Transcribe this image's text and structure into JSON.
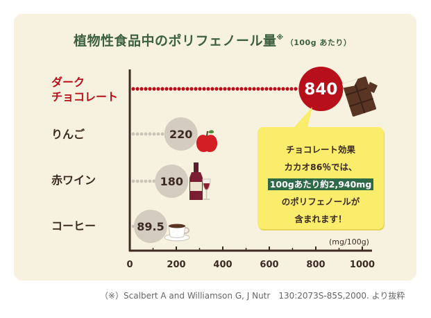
{
  "title": {
    "main": "植物性食品中のポリフェノール量",
    "mark": "※",
    "unit": "（100g あたり）"
  },
  "chart_data": {
    "type": "bar",
    "orientation": "horizontal",
    "categories": [
      "ダーク\nチョコレート",
      "りんご",
      "赤ワイン",
      "コーヒー"
    ],
    "values": [
      840,
      220,
      180,
      89.5
    ],
    "value_labels": [
      "840",
      "220",
      "180",
      "89.5"
    ],
    "xlim": [
      0,
      1000
    ],
    "xticks": [
      "0",
      "200",
      "400",
      "600",
      "800",
      "1000"
    ],
    "unit_label": "(mg/100g)",
    "colors": {
      "highlight": "#b8101a",
      "normal": "#d4ccbe",
      "dot_highlight": "#b8101a",
      "dot_normal": "#cbc3b6"
    },
    "icons": [
      "chocolate-icon",
      "apple-icon",
      "wine-icon",
      "coffee-icon"
    ]
  },
  "callout": {
    "line1": "チョコレート効果",
    "line2": "カカオ86％では、",
    "highlight": "100gあたり約2,940mg",
    "line4": "のポリフェノールが",
    "line5": "含まれます！"
  },
  "footnote": "（※）Scalbert A and Williamson G, J Nutr　130:2073S-85S,2000. より抜粋"
}
